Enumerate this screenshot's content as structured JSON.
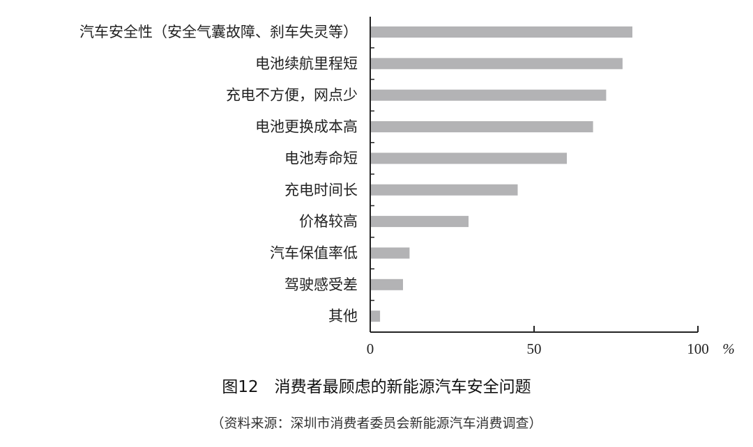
{
  "chart_data": {
    "type": "bar",
    "orientation": "horizontal",
    "title": "图12　消费者最顾虑的新能源汽车安全问题",
    "source": "（资料来源：深圳市消费者委员会新能源汽车消费调查）",
    "categories": [
      "汽车安全性（安全气囊故障、刹车失灵等）",
      "电池续航里程短",
      "充电不方便，网点少",
      "电池更换成本高",
      "电池寿命短",
      "充电时间长",
      "价格较高",
      "汽车保值率低",
      "驾驶感受差",
      "其他"
    ],
    "values": [
      80,
      77,
      72,
      68,
      60,
      45,
      30,
      12,
      10,
      3
    ],
    "xlim": [
      0,
      100
    ],
    "xticks": [
      "0",
      "50",
      "100"
    ],
    "xunit": "%",
    "grid": false,
    "bar_color": "#b3b3b5"
  }
}
